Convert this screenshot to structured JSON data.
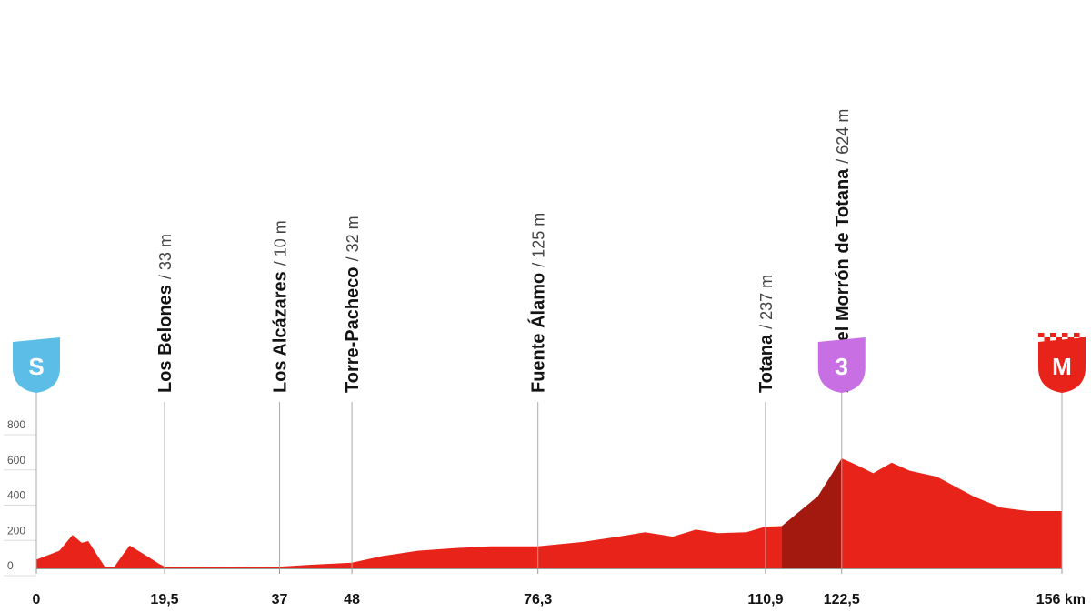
{
  "chart_data": {
    "type": "area",
    "x": [
      0,
      3.5,
      5.5,
      6.9,
      7.9,
      9,
      10.4,
      11.8,
      13.1,
      14.2,
      16.6,
      18.7,
      19.5,
      29,
      37,
      41.5,
      48,
      52.6,
      58,
      63.6,
      69,
      76.3,
      83,
      88.5,
      92.6,
      96.8,
      100.3,
      103.7,
      108,
      110.9,
      113.4,
      118.9,
      122.5,
      124.6,
      127.3,
      130.1,
      132.8,
      137,
      142.5,
      146.7,
      150.9,
      156
    ],
    "values": [
      50,
      100,
      190,
      145,
      155,
      90,
      10,
      5,
      75,
      130,
      75,
      25,
      10,
      5,
      10,
      20,
      32,
      70,
      100,
      115,
      125,
      125,
      150,
      180,
      205,
      180,
      220,
      200,
      205,
      237,
      240,
      410,
      624,
      590,
      540,
      600,
      555,
      520,
      410,
      345,
      325,
      325
    ],
    "color": "#e8231a",
    "climb": {
      "start": 113.4,
      "end": 122.5,
      "color": "#a3180f"
    },
    "xlim": [
      0,
      156
    ],
    "xticks": [
      0,
      {
        "value": 19.5,
        "label": "19,5"
      },
      37,
      48,
      {
        "value": 76.3,
        "label": "76,3"
      },
      {
        "value": 110.9,
        "label": "110,9"
      },
      {
        "value": 122.5,
        "label": "122,5"
      },
      {
        "value": 156,
        "label": "156 km"
      }
    ],
    "ylim": [
      0,
      800
    ],
    "yticks": [
      0,
      200,
      400,
      600,
      800
    ],
    "waypoints": [
      {
        "name": "Los Belones",
        "elevation": "/ 33 m"
      },
      {
        "name": "Los Alcázares",
        "elevation": "/ 10 m"
      },
      {
        "name": "Torre-Pacheco",
        "elevation": "/ 32 m"
      },
      {
        "name": "Fuente Álamo",
        "elevation": "/ 125 m"
      },
      {
        "name": "Totana",
        "elevation": "/ 237 m"
      },
      {
        "name": "Alto del Morrón de Totana",
        "elevation": "/ 624 m"
      }
    ],
    "start_badge": {
      "label": "S",
      "color": "#5cbde6"
    },
    "climb_badge": {
      "label": "3",
      "color": "#c86fe4"
    },
    "finish_badge": {
      "label": "M",
      "color": "#e8231a"
    }
  }
}
